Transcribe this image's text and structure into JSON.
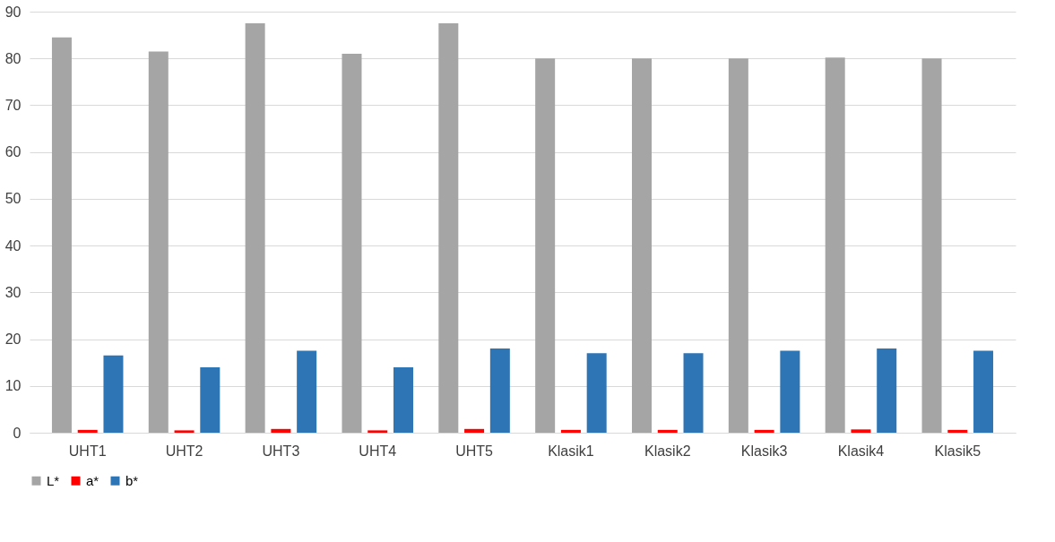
{
  "chart_data": {
    "type": "bar",
    "categories": [
      "UHT1",
      "UHT2",
      "UHT3",
      "UHT4",
      "UHT5",
      "Klasik1",
      "Klasik2",
      "Klasik3",
      "Klasik4",
      "Klasik5"
    ],
    "series": [
      {
        "name": "L*",
        "color": "#a5a5a5",
        "values": [
          84.5,
          81.5,
          87.5,
          81,
          87.5,
          80,
          80,
          80,
          80.2,
          80
        ]
      },
      {
        "name": "a*",
        "color": "#ff0000",
        "values": [
          0.6,
          0.5,
          0.8,
          0.5,
          0.8,
          0.6,
          0.6,
          0.6,
          0.7,
          0.6
        ]
      },
      {
        "name": "b*",
        "color": "#2e75b6",
        "values": [
          16.5,
          14,
          17.5,
          14,
          18,
          17,
          17,
          17.5,
          18,
          17.5
        ]
      }
    ],
    "ylim": [
      0,
      90
    ],
    "yticks": [
      0,
      10,
      20,
      30,
      40,
      50,
      60,
      70,
      80,
      90
    ],
    "grid": "y",
    "legend": "bottom"
  }
}
